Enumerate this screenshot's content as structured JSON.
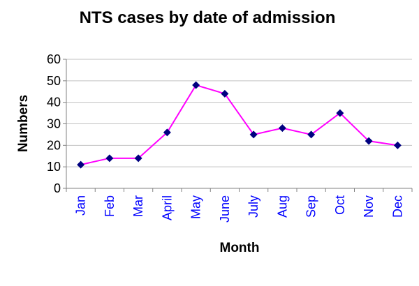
{
  "chart_data": {
    "type": "line",
    "title": "NTS cases by date of admission",
    "xlabel": "Month",
    "ylabel": "Numbers",
    "categories": [
      "Jan",
      "Feb",
      "Mar",
      "April",
      "May",
      "June",
      "July",
      "Aug",
      "Sep",
      "Oct",
      "Nov",
      "Dec"
    ],
    "series": [
      {
        "values": [
          11,
          14,
          14,
          26,
          48,
          44,
          25,
          28,
          25,
          35,
          22,
          20
        ]
      }
    ],
    "ylim": [
      0,
      60
    ],
    "yticks": [
      "0",
      "10",
      "20",
      "30",
      "40",
      "50",
      "60"
    ],
    "grid": true,
    "legend": "none",
    "colors": {
      "line": "#ff00ff",
      "marker": "#000080",
      "xtick_text": "#0000ff",
      "grid": "#c0c0c0",
      "axis": "#808080"
    }
  }
}
